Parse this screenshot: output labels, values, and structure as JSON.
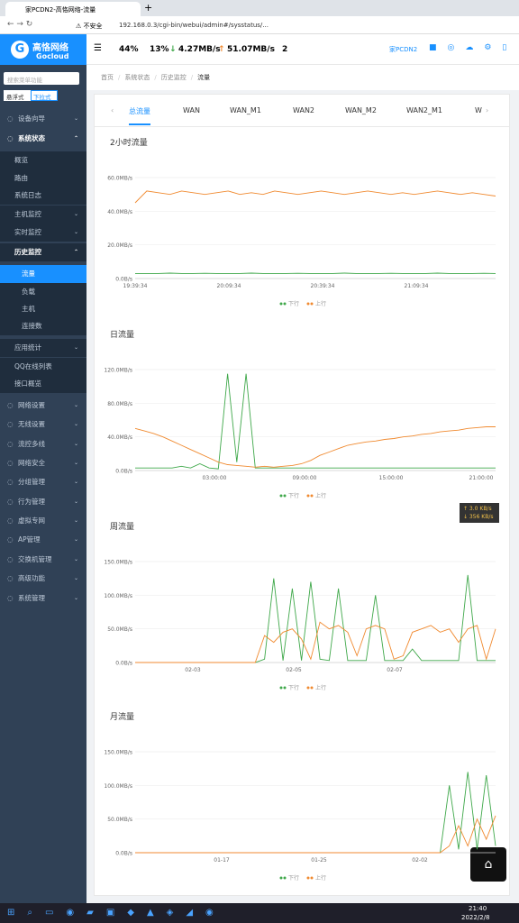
{
  "browser": {
    "tab_title": "家PCDN2-高恪网络-流量",
    "security": "不安全",
    "url": "192.168.0.3/cgi-bin/webui/admin#/sysstatus/..."
  },
  "header": {
    "logo": "高恪网络",
    "logo_en": "Gocloud",
    "stats": [
      "44%",
      "13%",
      "4.27MB/s",
      "51.07MB/s",
      "2"
    ],
    "device": "家PCDN2"
  },
  "sidebar": {
    "search": "搜索菜单功能",
    "modes": [
      "悬浮式",
      "下拉式"
    ],
    "menu": [
      "设备向导",
      "系统状态",
      "概览",
      "路由",
      "系统日志",
      "主机监控",
      "实时监控",
      "历史监控",
      "流量",
      "负载",
      "主机",
      "连接数",
      "应用统计",
      "QQ在线列表",
      "接口概览",
      "网络设置",
      "无线设置",
      "流控多线",
      "网络安全",
      "分组管理",
      "行为管理",
      "虚拟专网",
      "AP管理",
      "交换机管理",
      "高级功能",
      "系统管理"
    ]
  },
  "breadcrumb": [
    "首页",
    "系统状态",
    "历史监控",
    "流量"
  ],
  "tabs": [
    "总流量",
    "WAN",
    "WAN_M1",
    "WAN2",
    "WAN_M2",
    "WAN2_M1",
    "W"
  ],
  "tooltip": [
    "↑ 3.0 KB/s",
    "↓ 356 KB/s"
  ],
  "taskbar": {
    "time": "21:40",
    "date": "2022/2/8"
  },
  "chart_data": [
    {
      "type": "line",
      "title": "2小时流量",
      "xticks": [
        "19:39:34",
        "20:09:34",
        "20:39:34",
        "21:09:34"
      ],
      "ylim": [
        0,
        60
      ],
      "yticks": [
        {
          "value": 0,
          "label": "0.0B/s"
        },
        {
          "value": 20,
          "label": "20.0MB/s"
        },
        {
          "value": 40,
          "label": "40.0MB/s"
        },
        {
          "value": 60,
          "label": "60.0MB/s"
        }
      ],
      "grid": true,
      "series": [
        {
          "name": "下行",
          "color": "#3fa84a",
          "values": [
            3,
            3,
            3,
            3.2,
            3,
            3,
            3.1,
            3,
            3,
            3,
            3.2,
            3,
            3,
            3,
            3.1,
            3,
            3,
            3,
            3.2,
            3,
            3,
            3,
            3.1,
            3,
            3,
            3,
            3.2,
            3,
            3,
            3,
            3.1,
            3
          ]
        },
        {
          "name": "上行",
          "color": "#f08a30",
          "values": [
            45,
            52,
            51,
            50,
            52,
            51,
            50,
            51,
            52,
            50,
            51,
            50,
            52,
            51,
            50,
            51,
            52,
            51,
            50,
            51,
            52,
            51,
            50,
            51,
            50,
            51,
            52,
            51,
            50,
            51,
            50,
            49
          ]
        }
      ]
    },
    {
      "type": "line",
      "title": "日流量",
      "xticks": [
        "03:00:00",
        "09:00:00",
        "15:00:00",
        "21:00:00"
      ],
      "ylim": [
        0,
        120
      ],
      "yticks": [
        {
          "value": 0,
          "label": "0.0B/s"
        },
        {
          "value": 40,
          "label": "40.0MB/s"
        },
        {
          "value": 80,
          "label": "80.0MB/s"
        },
        {
          "value": 120,
          "label": "120.0MB/s"
        }
      ],
      "grid": true,
      "series": [
        {
          "name": "下行",
          "color": "#3fa84a",
          "values": [
            3,
            3,
            3,
            3,
            3,
            5,
            3,
            8,
            3,
            2,
            115,
            10,
            115,
            3,
            3,
            3,
            3,
            3,
            3,
            3,
            3,
            3,
            3,
            3,
            3,
            3,
            3,
            3,
            3,
            3,
            3,
            3,
            3,
            3,
            3,
            3,
            3,
            3,
            3,
            3
          ]
        },
        {
          "name": "上行",
          "color": "#f08a30",
          "values": [
            50,
            47,
            44,
            40,
            35,
            30,
            25,
            20,
            15,
            10,
            7,
            6,
            5,
            4,
            5,
            4,
            5,
            6,
            8,
            12,
            18,
            22,
            26,
            30,
            32,
            34,
            35,
            37,
            38,
            40,
            41,
            43,
            44,
            46,
            47,
            48,
            50,
            51,
            52,
            52
          ]
        }
      ]
    },
    {
      "type": "line",
      "title": "周流量",
      "xticks": [
        "02-03",
        "02-05",
        "02-07"
      ],
      "ylim": [
        0,
        150
      ],
      "yticks": [
        {
          "value": 0,
          "label": "0.0B/s"
        },
        {
          "value": 50,
          "label": "50.0MB/s"
        },
        {
          "value": 100,
          "label": "100.0MB/s"
        },
        {
          "value": 150,
          "label": "150.0MB/s"
        }
      ],
      "grid": true,
      "series": [
        {
          "name": "下行",
          "color": "#3fa84a",
          "values": [
            0,
            0,
            0,
            0,
            0,
            0,
            0,
            0,
            0,
            0,
            0,
            0,
            0,
            0,
            5,
            125,
            3,
            110,
            3,
            120,
            5,
            3,
            110,
            3,
            3,
            3,
            100,
            3,
            3,
            3,
            20,
            3,
            3,
            3,
            3,
            3,
            130,
            3,
            3,
            3
          ]
        },
        {
          "name": "上行",
          "color": "#f08a30",
          "values": [
            0,
            0,
            0,
            0,
            0,
            0,
            0,
            0,
            0,
            0,
            0,
            0,
            0,
            0,
            40,
            30,
            45,
            50,
            35,
            5,
            60,
            50,
            55,
            45,
            10,
            50,
            55,
            50,
            5,
            10,
            45,
            50,
            55,
            45,
            50,
            30,
            50,
            55,
            5,
            50
          ]
        }
      ]
    },
    {
      "type": "line",
      "title": "月流量",
      "xticks": [
        "01-17",
        "01-25",
        "02-02"
      ],
      "ylim": [
        0,
        150
      ],
      "yticks": [
        {
          "value": 0,
          "label": "0.0B/s"
        },
        {
          "value": 50,
          "label": "50.0MB/s"
        },
        {
          "value": 100,
          "label": "100.0MB/s"
        },
        {
          "value": 150,
          "label": "150.0MB/s"
        }
      ],
      "grid": true,
      "series": [
        {
          "name": "下行",
          "color": "#3fa84a",
          "values": [
            0,
            0,
            0,
            0,
            0,
            0,
            0,
            0,
            0,
            0,
            0,
            0,
            0,
            0,
            0,
            0,
            0,
            0,
            0,
            0,
            0,
            0,
            0,
            0,
            0,
            0,
            0,
            0,
            0,
            0,
            0,
            0,
            0,
            0,
            100,
            5,
            120,
            5,
            115,
            10
          ]
        },
        {
          "name": "上行",
          "color": "#f08a30",
          "values": [
            0,
            0,
            0,
            0,
            0,
            0,
            0,
            0,
            0,
            0,
            0,
            0,
            0,
            0,
            0,
            0,
            0,
            0,
            0,
            0,
            0,
            0,
            0,
            0,
            0,
            0,
            0,
            0,
            0,
            0,
            0,
            0,
            0,
            0,
            10,
            40,
            10,
            50,
            20,
            55
          ]
        }
      ]
    }
  ]
}
